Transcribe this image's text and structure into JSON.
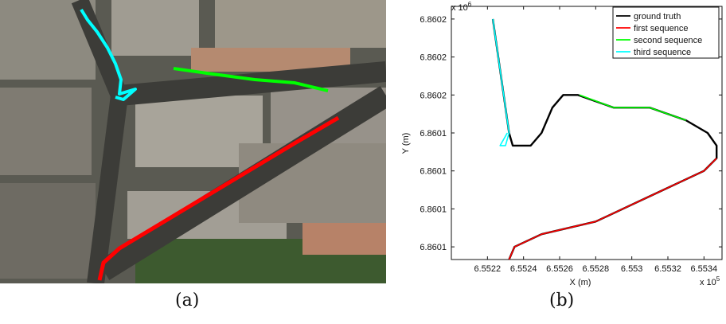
{
  "captions": {
    "a": "(a)",
    "b": "(b)"
  },
  "aerial_panel": {
    "content": "aerial satellite view of city streets with overlaid colored trajectories",
    "trajectory_colors": {
      "first": "#ff0000",
      "second": "#00ff00",
      "third": "#00ffff"
    }
  },
  "chart_data": {
    "type": "line",
    "title": "",
    "xlabel": "X (m)",
    "ylabel": "Y (m)",
    "x_exponent": "x 10",
    "x_exponent_power": "5",
    "y_exponent": "x 10",
    "y_exponent_power": "6",
    "xlim": [
      6.552,
      6.5535
    ],
    "ylim": [
      6.86005,
      6.86025
    ],
    "xticks": [
      6.5522,
      6.5524,
      6.5526,
      6.5528,
      6.553,
      6.5532,
      6.5534
    ],
    "xtick_labels": [
      "6.5522",
      "6.5524",
      "6.5526",
      "6.5528",
      "6.553",
      "6.5532",
      "6.5534"
    ],
    "yticks": [
      6.86006,
      6.86009,
      6.86012,
      6.86015,
      6.86018,
      6.86021,
      6.86024
    ],
    "ytick_labels": [
      "6.8601",
      "6.8601",
      "6.8601",
      "6.8601",
      "6.8602",
      "6.8602",
      "6.8602"
    ],
    "legend_position": "top-right",
    "grid": false,
    "series": [
      {
        "name": "ground truth",
        "color": "#000000",
        "points": [
          [
            6.55223,
            6.86024
          ],
          [
            6.55226,
            6.86021
          ],
          [
            6.55229,
            6.86018
          ],
          [
            6.55232,
            6.86015
          ],
          [
            6.55234,
            6.86014
          ],
          [
            6.55244,
            6.86014
          ],
          [
            6.5525,
            6.86015
          ],
          [
            6.55256,
            6.86017
          ],
          [
            6.55262,
            6.86018
          ],
          [
            6.5527,
            6.86018
          ],
          [
            6.5529,
            6.86017
          ],
          [
            6.5531,
            6.86017
          ],
          [
            6.5533,
            6.86016
          ],
          [
            6.55342,
            6.86015
          ],
          [
            6.55347,
            6.86014
          ],
          [
            6.55347,
            6.86013
          ],
          [
            6.5534,
            6.86012
          ],
          [
            6.5531,
            6.8601
          ],
          [
            6.5528,
            6.86008
          ],
          [
            6.5525,
            6.86007
          ],
          [
            6.55235,
            6.86006
          ],
          [
            6.55232,
            6.86005
          ]
        ]
      },
      {
        "name": "first sequence",
        "color": "#ff0000",
        "points": [
          [
            6.55347,
            6.86013
          ],
          [
            6.5534,
            6.86012
          ],
          [
            6.5531,
            6.8601
          ],
          [
            6.5528,
            6.86008
          ],
          [
            6.5525,
            6.86007
          ],
          [
            6.55235,
            6.86006
          ],
          [
            6.55232,
            6.86005
          ]
        ]
      },
      {
        "name": "second sequence",
        "color": "#00ff00",
        "points": [
          [
            6.55271,
            6.86018
          ],
          [
            6.5529,
            6.86017
          ],
          [
            6.5531,
            6.86017
          ],
          [
            6.5533,
            6.86016
          ]
        ]
      },
      {
        "name": "third sequence",
        "color": "#00ffff",
        "points": [
          [
            6.55223,
            6.86024
          ],
          [
            6.55226,
            6.86021
          ],
          [
            6.55229,
            6.86018
          ],
          [
            6.55232,
            6.86015
          ],
          [
            6.5523,
            6.86014
          ],
          [
            6.55227,
            6.86014
          ],
          [
            6.55231,
            6.86015
          ]
        ]
      }
    ]
  }
}
